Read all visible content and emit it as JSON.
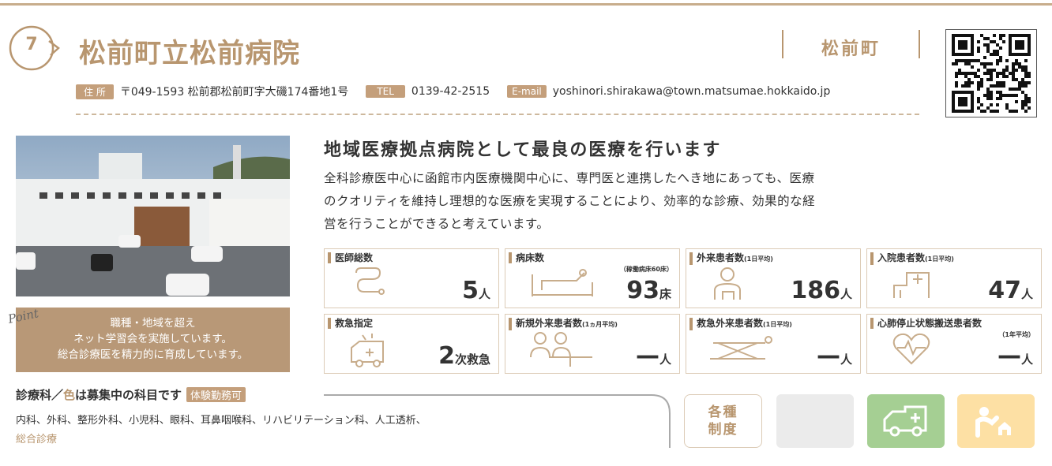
{
  "header": {
    "number": "7",
    "title": "松前町立松前病院",
    "town": "松前町"
  },
  "contact": {
    "address_label": "住 所",
    "address": "〒049-1593 松前郡松前町字大磯174番地1号",
    "tel_label": "TEL",
    "tel": "0139-42-2515",
    "email_label": "E-mail",
    "email": "yoshinori.shirakawa@town.matsumae.hokkaido.jp"
  },
  "point": {
    "label": "Point",
    "lines": [
      "職種・地域を超え",
      "ネット学習会を実施しています。",
      "総合診療医を精力的に育成しています。"
    ]
  },
  "intro": {
    "heading": "地域医療拠点病院として最良の医療を行います",
    "lines": [
      "全科診療医中心に函館市内医療機関中心に、専門医と連携したへき地にあっても、医療",
      "のクオリティを維持し理想的な医療を実現することにより、効率的な診療、効果的な経",
      "営を行うことができると考えています。"
    ]
  },
  "stats": [
    {
      "label": "医師総数",
      "value": 5,
      "unit": "人"
    },
    {
      "label": "病床数",
      "note": "（稼働病床60床）",
      "value": 93,
      "unit": "床"
    },
    {
      "label": "外来患者数",
      "sublabel": "(1日平均)",
      "value": 186,
      "unit": "人"
    },
    {
      "label": "入院患者数",
      "sublabel": "(1日平均)",
      "value": 47,
      "unit": "人"
    },
    {
      "label": "救急指定",
      "value": 2,
      "unit": "次救急"
    },
    {
      "label": "新規外来患者数",
      "sublabel": "(1ヵ月平均)",
      "value": "—",
      "unit": "人"
    },
    {
      "label": "救急外来患者数",
      "sublabel": "(1日平均)",
      "value": "—",
      "unit": "人"
    },
    {
      "label": "心肺停止状態搬送患者数",
      "note": "（1年平均）",
      "value": "—",
      "unit": "人"
    }
  ],
  "departments": {
    "heading_pre": "診療科／",
    "heading_accent": "色",
    "heading_post": "は募集中の科目です",
    "badge": "体験勤務可",
    "list": "内科、外科、整形外科、小児科、眼科、耳鼻咽喉科、リハビリテーション科、人工透析、",
    "recruiting": "総合診療"
  },
  "systems": {
    "label_lines": [
      "各種",
      "制度"
    ]
  }
}
